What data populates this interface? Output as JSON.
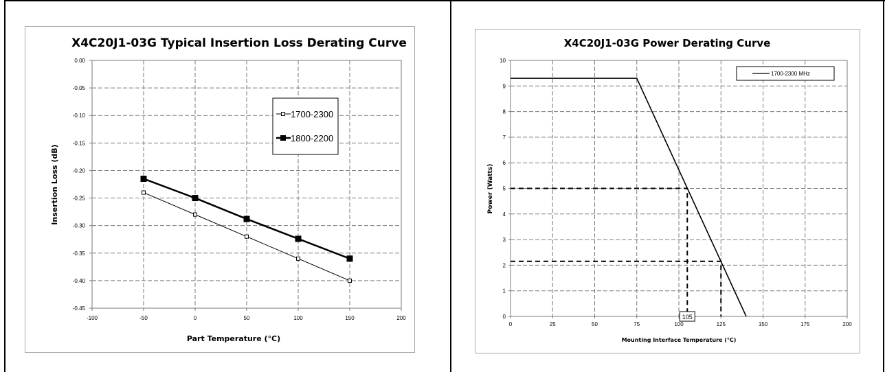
{
  "chart_data": [
    {
      "type": "line",
      "title": "X4C20J1-03G Typical Insertion Loss Derating Curve",
      "xlabel": "Part Temperature (°C)",
      "ylabel": "Insertion Loss (dB)",
      "xlim": [
        -100,
        200
      ],
      "ylim": [
        -0.45,
        0.0
      ],
      "xticks": [
        -100,
        -50,
        0,
        50,
        100,
        150,
        200
      ],
      "xtick_labels": [
        "-100",
        "-50",
        "0",
        "50",
        "100",
        "150",
        "200"
      ],
      "yticks": [
        0.0,
        -0.05,
        -0.1,
        -0.15,
        -0.2,
        -0.25,
        -0.3,
        -0.35,
        -0.4,
        -0.45
      ],
      "ytick_labels": [
        "0.00",
        "-0.05",
        "-0.10",
        "-0.15",
        "-0.20",
        "-0.25",
        "-0.30",
        "-0.35",
        "-0.40",
        "-0.45"
      ],
      "grid": true,
      "legend_position": "right",
      "series": [
        {
          "name": "1700-2300",
          "marker": "open-square",
          "x": [
            -50,
            0,
            50,
            100,
            150
          ],
          "y": [
            -0.24,
            -0.28,
            -0.32,
            -0.36,
            -0.4
          ]
        },
        {
          "name": "1800-2200",
          "marker": "filled-square",
          "x": [
            -50,
            0,
            50,
            100,
            150
          ],
          "y": [
            -0.215,
            -0.25,
            -0.288,
            -0.324,
            -0.36
          ]
        }
      ]
    },
    {
      "type": "line",
      "title": "X4C20J1-03G Power Derating Curve",
      "xlabel": "Mounting Interface Temperature (°C)",
      "ylabel": "Power (Watts)",
      "xlim": [
        0,
        200
      ],
      "ylim": [
        0,
        10
      ],
      "xticks": [
        0,
        25,
        50,
        75,
        100,
        125,
        150,
        175,
        200
      ],
      "xtick_labels": [
        "0",
        "25",
        "50",
        "75",
        "100",
        "125",
        "150",
        "175",
        "200"
      ],
      "yticks": [
        0,
        1,
        2,
        3,
        4,
        5,
        6,
        7,
        8,
        9,
        10
      ],
      "ytick_labels": [
        "0",
        "1",
        "2",
        "3",
        "4",
        "5",
        "6",
        "7",
        "8",
        "9",
        "10"
      ],
      "grid": true,
      "legend_position": "top-right",
      "series": [
        {
          "name": "1700-2300 MHz",
          "x": [
            0,
            75,
            140
          ],
          "y": [
            9.3,
            9.3,
            0
          ]
        }
      ],
      "reference_lines": [
        {
          "x": [
            0,
            105,
            105
          ],
          "y": [
            5,
            5,
            0
          ]
        },
        {
          "x": [
            0,
            125,
            125
          ],
          "y": [
            2.15,
            2.15,
            0
          ]
        }
      ],
      "annotations": [
        {
          "text": "105",
          "x": 105,
          "y": 0
        }
      ]
    }
  ]
}
